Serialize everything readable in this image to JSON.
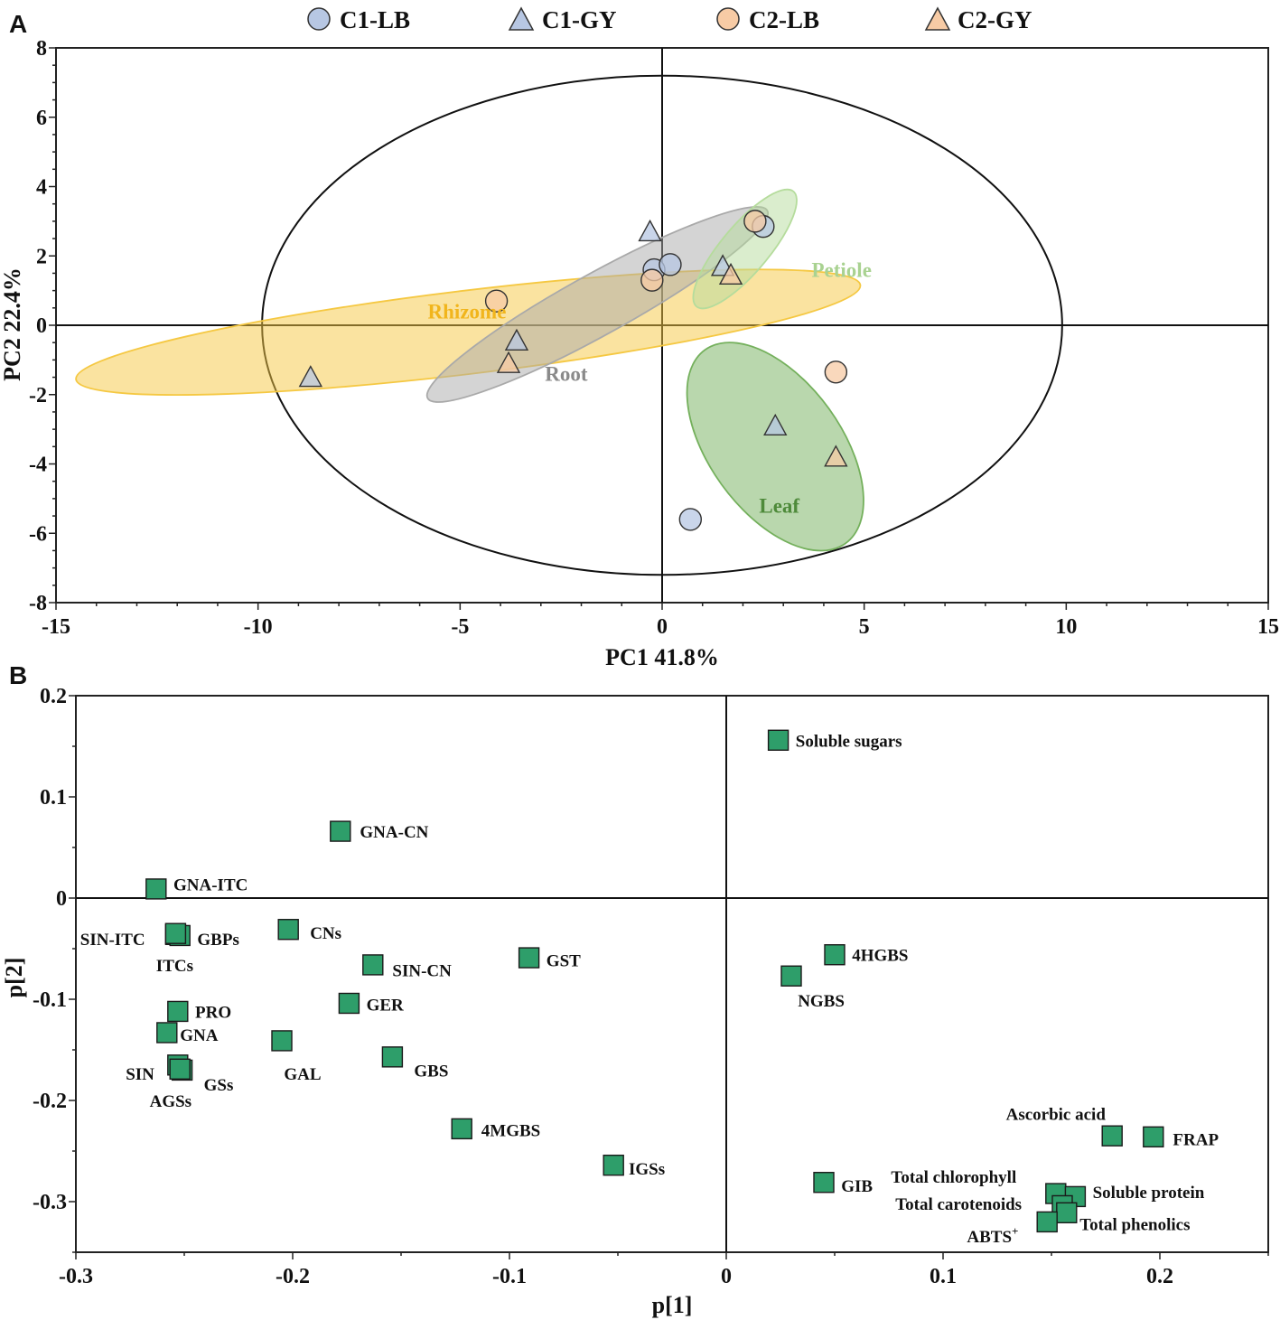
{
  "panels": {
    "a": "A",
    "b": "B"
  },
  "chart_data": [
    {
      "type": "scatter",
      "panel": "A",
      "title": "",
      "xlabel": "PC1 41.8%",
      "ylabel": "PC2 22.4%",
      "xlim": [
        -15,
        15
      ],
      "ylim": [
        -8,
        8
      ],
      "xticks": [
        "-15",
        "-10",
        "-5",
        "0",
        "5",
        "10",
        "15"
      ],
      "yticks": [
        "-8",
        "-6",
        "-4",
        "-2",
        "0",
        "2",
        "4",
        "6",
        "8"
      ],
      "legend": {
        "position": "top",
        "entries": [
          {
            "label": "C1-LB",
            "marker": "circle",
            "color": "#b7c7e3"
          },
          {
            "label": "C1-GY",
            "marker": "triangle",
            "color": "#b7c7e3"
          },
          {
            "label": "C2-LB",
            "marker": "circle",
            "color": "#f7cba5"
          },
          {
            "label": "C2-GY",
            "marker": "triangle",
            "color": "#f7cba5"
          }
        ]
      },
      "confidence_ellipse": {
        "cx": 0,
        "cy": 0,
        "rx": 9.9,
        "ry": 7.2
      },
      "groups": [
        {
          "name": "Rhizome",
          "color": "#f5c842",
          "text_color": "#f1b51c",
          "label_at": [
            -5.8,
            0.4
          ],
          "ellipse": {
            "cx": -4.8,
            "cy": -0.2,
            "rx": 9.8,
            "ry": 1.2,
            "angle_deg": 8
          },
          "points": [
            {
              "series": "C2-LB",
              "x": -4.1,
              "y": 0.7
            },
            {
              "series": "C1-GY",
              "x": -8.7,
              "y": -1.5
            }
          ]
        },
        {
          "name": "Root",
          "color": "#a9a9a9",
          "text_color": "#8a8a8a",
          "label_at": [
            -2.9,
            -1.4
          ],
          "ellipse": {
            "cx": -1.6,
            "cy": 0.6,
            "rx": 5.0,
            "ry": 0.85,
            "angle_deg": 33
          },
          "points": [
            {
              "series": "C1-GY",
              "x": -0.3,
              "y": 2.7
            },
            {
              "series": "C1-LB",
              "x": -0.2,
              "y": 1.6
            },
            {
              "series": "C1-LB",
              "x": 0.2,
              "y": 1.75
            },
            {
              "series": "C2-LB",
              "x": -0.25,
              "y": 1.3
            },
            {
              "series": "C1-GY",
              "x": -3.6,
              "y": -0.45
            },
            {
              "series": "C2-GY",
              "x": -3.8,
              "y": -1.1
            }
          ]
        },
        {
          "name": "Petiole",
          "color": "#b5dc9c",
          "text_color": "#a9d291",
          "label_at": [
            3.7,
            1.6
          ],
          "ellipse": {
            "cx": 2.05,
            "cy": 2.2,
            "rx": 2.05,
            "ry": 0.62,
            "angle_deg": 55
          },
          "points": [
            {
              "series": "C1-LB",
              "x": 2.5,
              "y": 2.85
            },
            {
              "series": "C2-LB",
              "x": 2.3,
              "y": 3.0
            },
            {
              "series": "C1-GY",
              "x": 1.5,
              "y": 1.7
            },
            {
              "series": "C2-GY",
              "x": 1.7,
              "y": 1.45
            }
          ]
        },
        {
          "name": "Leaf",
          "color": "#74b05c",
          "text_color": "#4e8a3a",
          "label_at": [
            2.4,
            -5.2
          ],
          "ellipse": {
            "cx": 2.8,
            "cy": -3.5,
            "rx": 3.3,
            "ry": 1.7,
            "angle_deg": -61
          },
          "points": [
            {
              "series": "C2-LB",
              "x": 4.3,
              "y": -1.35
            },
            {
              "series": "C1-GY",
              "x": 2.8,
              "y": -2.9
            },
            {
              "series": "C2-GY",
              "x": 4.3,
              "y": -3.8
            },
            {
              "series": "C1-LB",
              "x": 0.7,
              "y": -5.6
            }
          ]
        }
      ]
    },
    {
      "type": "scatter",
      "panel": "B",
      "title": "",
      "xlabel": "p[1]",
      "ylabel": "p[2]",
      "xlim": [
        -0.3,
        0.25
      ],
      "ylim": [
        -0.35,
        0.2
      ],
      "xticks": [
        "-0.3",
        "-0.2",
        "-0.1",
        "0",
        "0.1",
        "0.2"
      ],
      "yticks": [
        "-0.3",
        "-0.2",
        "-0.1",
        "0",
        "0.1",
        "0.2"
      ],
      "marker": {
        "shape": "square",
        "color": "#2e9e6a"
      },
      "points": [
        {
          "label": "Soluble sugars",
          "x": 0.024,
          "y": 0.156,
          "lx": 0.032,
          "ly": 0.156
        },
        {
          "label": "GNA-CN",
          "x": -0.178,
          "y": 0.066,
          "lx": -0.169,
          "ly": 0.066
        },
        {
          "label": "GNA-ITC",
          "x": -0.263,
          "y": 0.009,
          "lx": -0.255,
          "ly": 0.014
        },
        {
          "label": "SIN-ITC",
          "x": -0.254,
          "y": -0.036,
          "lx": -0.298,
          "ly": -0.04
        },
        {
          "label": "GBPs",
          "x": -0.252,
          "y": -0.037,
          "lx": -0.244,
          "ly": -0.04
        },
        {
          "label": "ITCs",
          "x": -0.254,
          "y": -0.035,
          "lx": -0.263,
          "ly": -0.066
        },
        {
          "label": "CNs",
          "x": -0.202,
          "y": -0.031,
          "lx": -0.192,
          "ly": -0.034
        },
        {
          "label": "SIN-CN",
          "x": -0.163,
          "y": -0.066,
          "lx": -0.154,
          "ly": -0.071
        },
        {
          "label": "GST",
          "x": -0.091,
          "y": -0.059,
          "lx": -0.083,
          "ly": -0.061
        },
        {
          "label": "4HGBS",
          "x": 0.05,
          "y": -0.056,
          "lx": 0.058,
          "ly": -0.056
        },
        {
          "label": "NGBS",
          "x": 0.03,
          "y": -0.077,
          "lx": 0.033,
          "ly": -0.101
        },
        {
          "label": "PRO",
          "x": -0.253,
          "y": -0.112,
          "lx": -0.245,
          "ly": -0.112
        },
        {
          "label": "GER",
          "x": -0.174,
          "y": -0.104,
          "lx": -0.166,
          "ly": -0.105
        },
        {
          "label": "GNA",
          "x": -0.258,
          "y": -0.133,
          "lx": -0.252,
          "ly": -0.135
        },
        {
          "label": "GAL",
          "x": -0.205,
          "y": -0.141,
          "lx": -0.204,
          "ly": -0.173
        },
        {
          "label": "GBS",
          "x": -0.154,
          "y": -0.157,
          "lx": -0.144,
          "ly": -0.17
        },
        {
          "label": "SIN",
          "x": -0.253,
          "y": -0.165,
          "lx": -0.277,
          "ly": -0.173
        },
        {
          "label": "GSs",
          "x": -0.251,
          "y": -0.17,
          "lx": -0.241,
          "ly": -0.184
        },
        {
          "label": "AGSs",
          "x": -0.252,
          "y": -0.169,
          "lx": -0.266,
          "ly": -0.2
        },
        {
          "label": "4MGBS",
          "x": -0.122,
          "y": -0.228,
          "lx": -0.113,
          "ly": -0.229
        },
        {
          "label": "IGSs",
          "x": -0.052,
          "y": -0.264,
          "lx": -0.045,
          "ly": -0.267
        },
        {
          "label": "Ascorbic acid",
          "x": 0.178,
          "y": -0.235,
          "lx": 0.129,
          "ly": -0.213
        },
        {
          "label": "FRAP",
          "x": 0.197,
          "y": -0.236,
          "lx": 0.206,
          "ly": -0.238
        },
        {
          "label": "GIB",
          "x": 0.045,
          "y": -0.281,
          "lx": 0.053,
          "ly": -0.284
        },
        {
          "label": "Total chlorophyll",
          "x": 0.152,
          "y": -0.292,
          "lx": 0.076,
          "ly": -0.275
        },
        {
          "label": "Soluble protein",
          "x": 0.161,
          "y": -0.295,
          "lx": 0.169,
          "ly": -0.29
        },
        {
          "label": "Total carotenoids",
          "x": 0.155,
          "y": -0.304,
          "lx": 0.078,
          "ly": -0.302
        },
        {
          "label": "Total phenolics",
          "x": 0.157,
          "y": -0.311,
          "lx": 0.163,
          "ly": -0.322
        },
        {
          "label": "ABTS+",
          "x": 0.148,
          "y": -0.32,
          "lx": 0.111,
          "ly": -0.334
        }
      ]
    }
  ]
}
